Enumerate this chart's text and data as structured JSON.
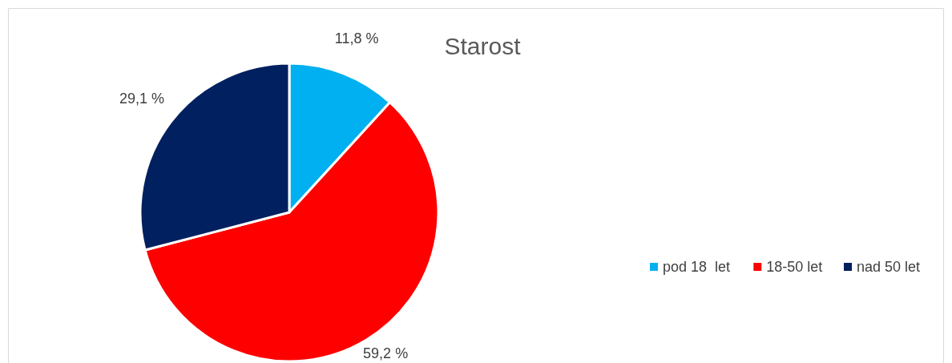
{
  "chart_data": {
    "type": "pie",
    "title": "Starost",
    "categories": [
      "pod 18  let",
      "18-50 let",
      "nad 50 let"
    ],
    "values": [
      11.8,
      59.2,
      29.1
    ],
    "colors": [
      "#00b0f0",
      "#ff0000",
      "#002060"
    ],
    "value_labels": [
      "11,8 %",
      "59,2 %",
      "29,1 %"
    ],
    "legend": "right"
  }
}
